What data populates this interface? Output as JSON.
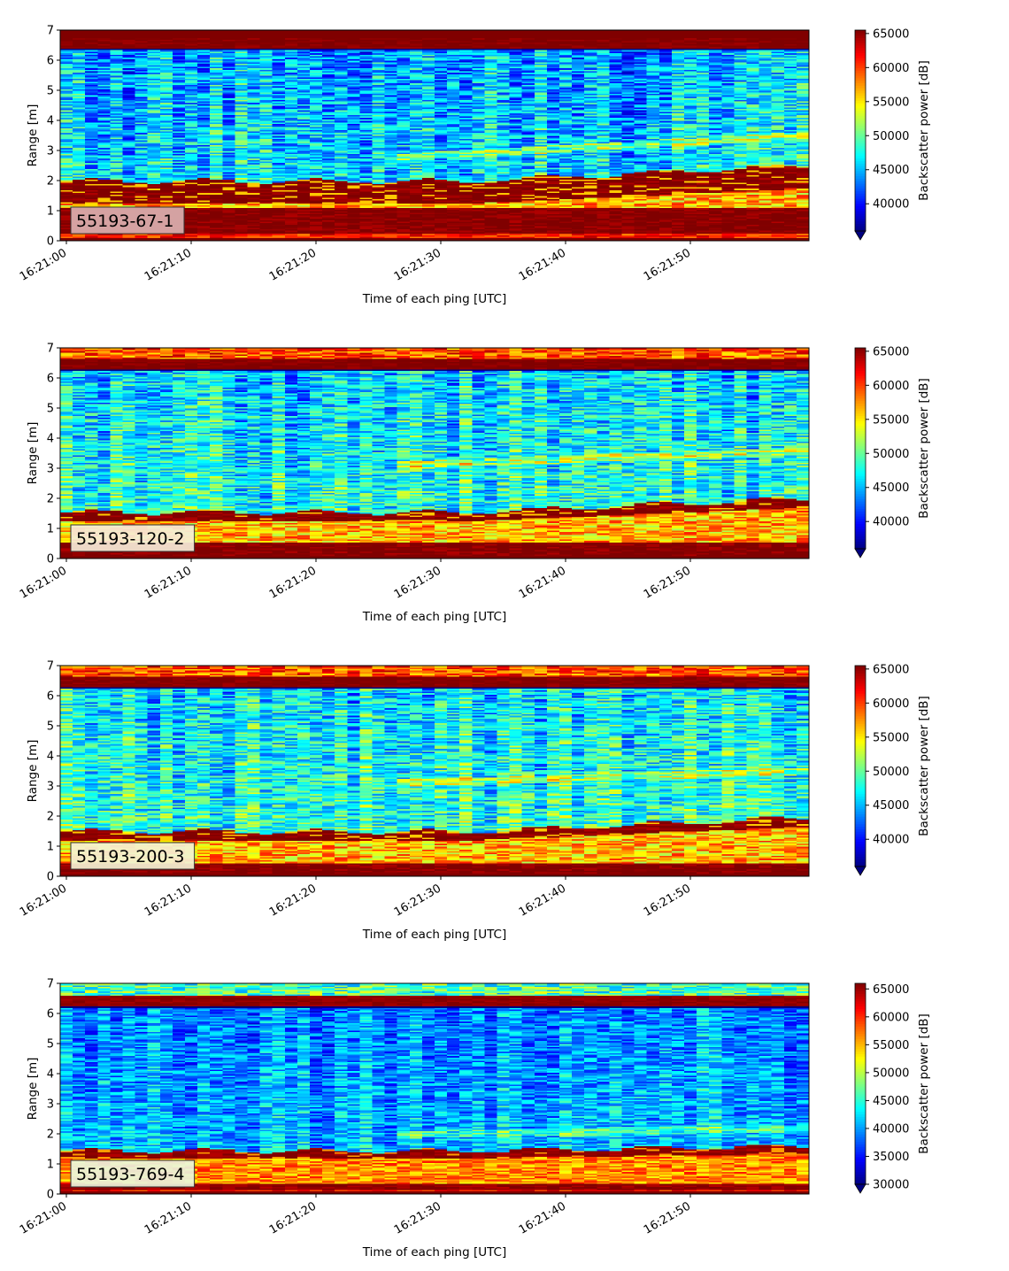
{
  "chart_data": [
    {
      "type": "heatmap",
      "sensor_label": "55193-67-1",
      "label_box_color": "#dbb0b0",
      "xlabel": "Time of each ping [UTC]",
      "ylabel": "Range [m]",
      "ylim": [
        0,
        7
      ],
      "xlim": [
        "16:21:00",
        "16:21:59"
      ],
      "x_ticks": [
        "16:21:00",
        "16:21:10",
        "16:21:20",
        "16:21:30",
        "16:21:40",
        "16:21:50"
      ],
      "y_ticks": [
        0,
        1,
        2,
        3,
        4,
        5,
        6,
        7
      ],
      "colorbar": {
        "label": "Backscatter power [dB]",
        "colormap": "jet",
        "vmin": 36000,
        "vmax": 65500,
        "extend": "min",
        "ticks": [
          40000,
          45000,
          50000,
          55000,
          60000,
          65000
        ]
      },
      "features": {
        "near_field_band_m": [
          0.25,
          1.1
        ],
        "bottom_echo_top_m": 6.35,
        "layer_m": [
          1.25,
          2.0
        ],
        "layer_rise_end_m": 2.5,
        "background_level": 44000,
        "bright_trend_m": [
          2.2,
          3.5
        ]
      }
    },
    {
      "type": "heatmap",
      "sensor_label": "55193-120-2",
      "label_box_color": "#f6ecd8",
      "xlabel": "Time of each ping [UTC]",
      "ylabel": "Range [m]",
      "ylim": [
        0,
        7
      ],
      "xlim": [
        "16:21:00",
        "16:21:59"
      ],
      "x_ticks": [
        "16:21:00",
        "16:21:10",
        "16:21:20",
        "16:21:30",
        "16:21:40",
        "16:21:50"
      ],
      "y_ticks": [
        0,
        1,
        2,
        3,
        4,
        5,
        6,
        7
      ],
      "colorbar": {
        "label": "Backscatter power [dB]",
        "colormap": "jet",
        "vmin": 36000,
        "vmax": 65500,
        "extend": "min",
        "ticks": [
          40000,
          45000,
          50000,
          55000,
          60000,
          65000
        ]
      },
      "features": {
        "near_field_band_m": [
          0.1,
          0.55
        ],
        "bottom_echo_top_m": 6.25,
        "layer_m": [
          1.25,
          1.55
        ],
        "layer_rise_end_m": 2.0,
        "background_level": 45500,
        "bright_trend_m": [
          2.7,
          3.6
        ]
      }
    },
    {
      "type": "heatmap",
      "sensor_label": "55193-200-3",
      "label_box_color": "#f4f2d4",
      "xlabel": "Time of each ping [UTC]",
      "ylabel": "Range [m]",
      "ylim": [
        0,
        7
      ],
      "xlim": [
        "16:21:00",
        "16:21:59"
      ],
      "x_ticks": [
        "16:21:00",
        "16:21:10",
        "16:21:20",
        "16:21:30",
        "16:21:40",
        "16:21:50"
      ],
      "y_ticks": [
        0,
        1,
        2,
        3,
        4,
        5,
        6,
        7
      ],
      "colorbar": {
        "label": "Backscatter power [dB]",
        "colormap": "jet",
        "vmin": 36000,
        "vmax": 65500,
        "extend": "min",
        "ticks": [
          40000,
          45000,
          50000,
          55000,
          60000,
          65000
        ]
      },
      "features": {
        "near_field_band_m": [
          0.1,
          0.45
        ],
        "bottom_echo_top_m": 6.25,
        "layer_m": [
          1.2,
          1.5
        ],
        "layer_rise_end_m": 1.95,
        "background_level": 46000,
        "bright_trend_m": [
          2.8,
          3.5
        ]
      }
    },
    {
      "type": "heatmap",
      "sensor_label": "55193-769-4",
      "label_box_color": "#eaf4dc",
      "xlabel": "Time of each ping [UTC]",
      "ylabel": "Range [m]",
      "ylim": [
        0,
        7
      ],
      "xlim": [
        "16:21:00",
        "16:21:59"
      ],
      "x_ticks": [
        "16:21:00",
        "16:21:10",
        "16:21:20",
        "16:21:30",
        "16:21:40",
        "16:21:50"
      ],
      "y_ticks": [
        0,
        1,
        2,
        3,
        4,
        5,
        6,
        7
      ],
      "colorbar": {
        "label": "Backscatter power [dB]",
        "colormap": "jet",
        "vmin": 30000,
        "vmax": 66000,
        "extend": "min",
        "ticks": [
          30000,
          35000,
          40000,
          45000,
          50000,
          55000,
          60000,
          65000
        ]
      },
      "features": {
        "near_field_band_m": [
          0.15,
          0.35
        ],
        "bottom_echo_top_m": 6.2,
        "layer_m": [
          1.2,
          1.45
        ],
        "layer_rise_end_m": 1.6,
        "background_level": 39000,
        "bright_trend_m": [
          1.8,
          2.2
        ]
      }
    }
  ]
}
